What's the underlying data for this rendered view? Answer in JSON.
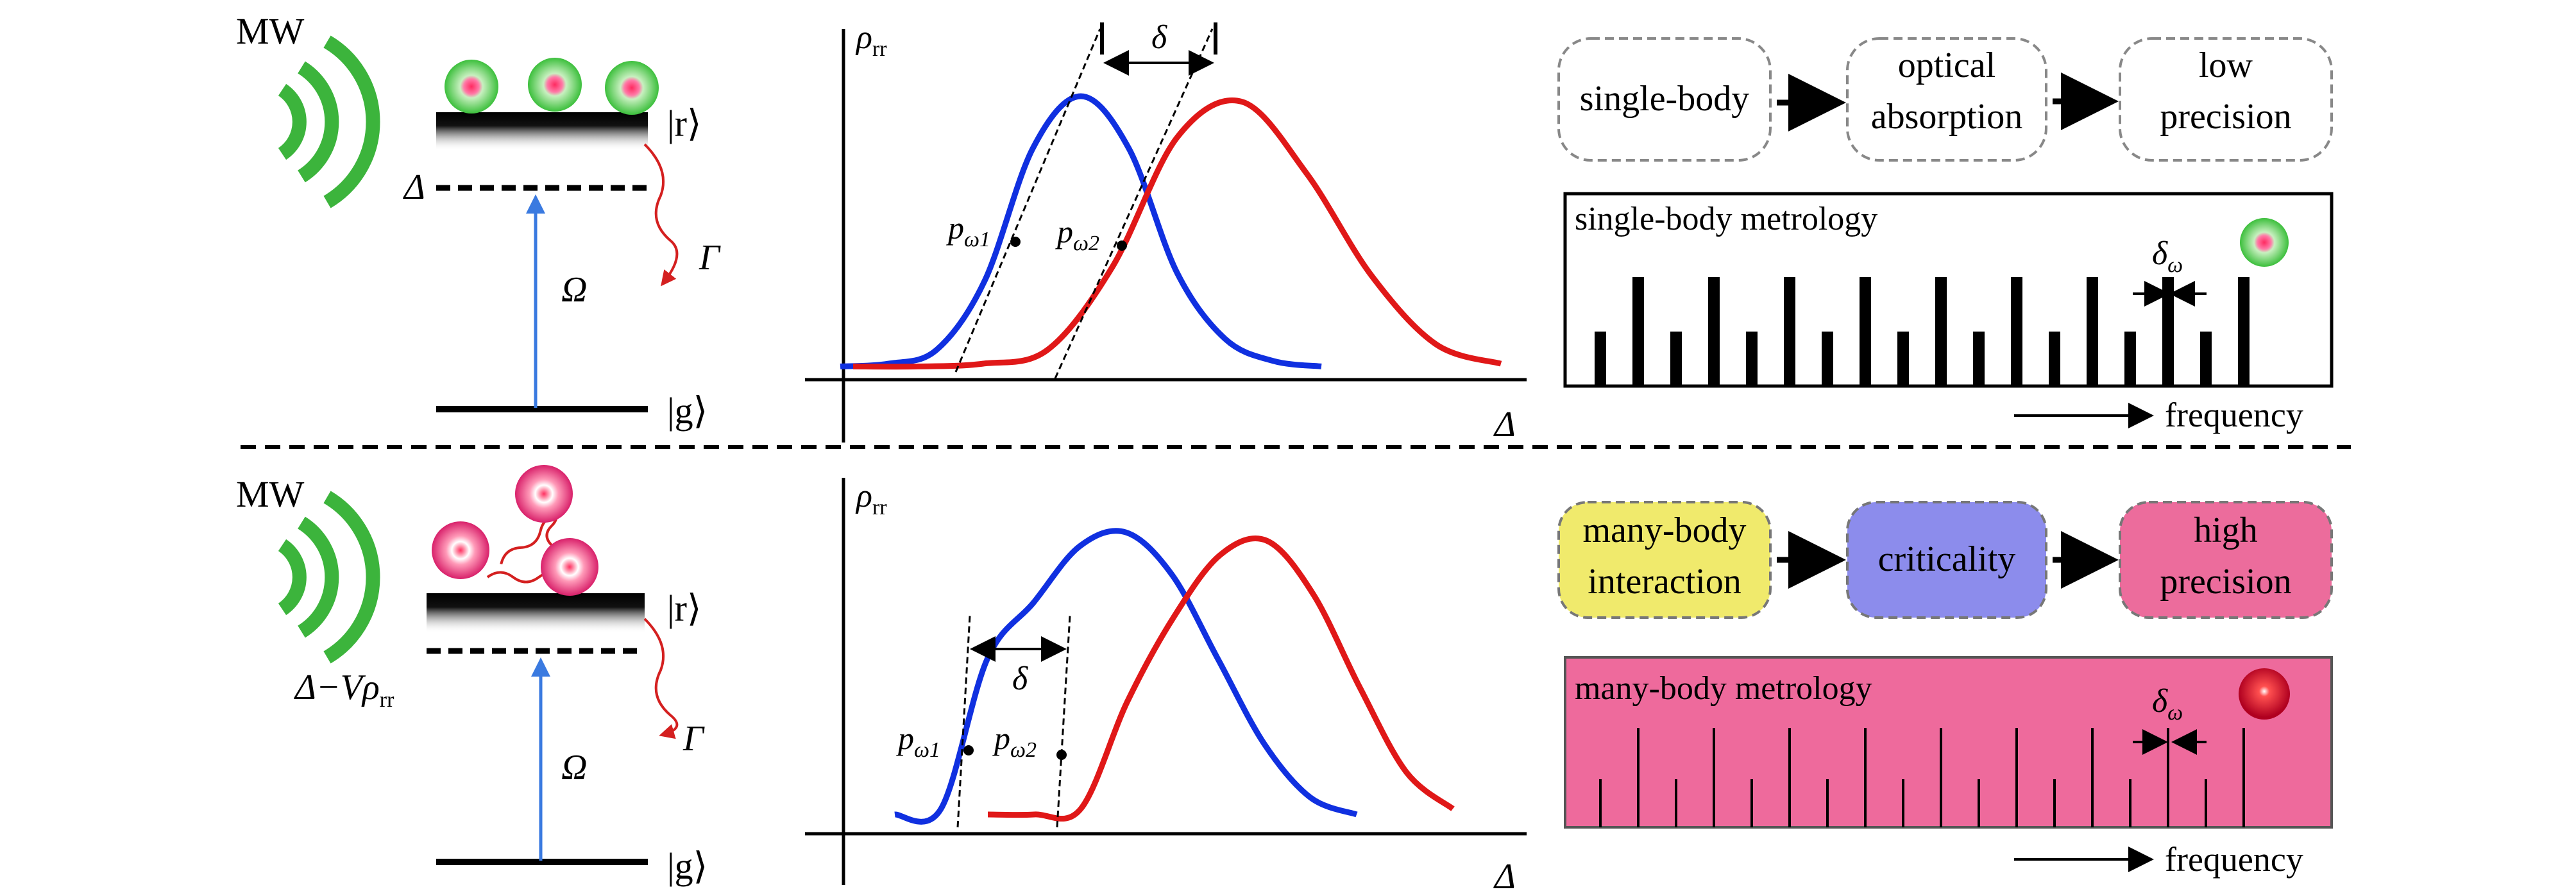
{
  "colors": {
    "blue_curve": "#1030e0",
    "red_curve": "#e01818",
    "mw_green": "#3cb43c",
    "pump_blue": "#3a7ae0",
    "decay_red": "#d42020",
    "box_yellow": "#f0ea6c",
    "box_purple": "#8c8cec",
    "box_pink": "#ec6c9c",
    "metrology_bg": "#ee6a9c"
  },
  "top": {
    "mw_label": "MW",
    "rydberg_level": "|r⟩",
    "ground_level": "|g⟩",
    "detuning": "Δ",
    "rabi": "Ω",
    "decay": "Γ",
    "plot": {
      "ylabel_main": "ρ",
      "ylabel_sub": "rr",
      "xlabel": "Δ",
      "delta": "δ",
      "p1_main": "p",
      "p1_sub": "ω1",
      "p2_main": "p",
      "p2_sub": "ω2"
    },
    "flow": [
      "single-body",
      "optical|absorption",
      "low|precision"
    ],
    "metrology_title": "single-body metrology",
    "delta_omega_main": "δ",
    "delta_omega_sub": "ω",
    "frequency": "frequency"
  },
  "bottom": {
    "mw_label": "MW",
    "rydberg_level": "|r⟩",
    "ground_level": "|g⟩",
    "detuning_a": "Δ",
    "detuning_b": "−Vρ",
    "detuning_sub": "rr",
    "rabi": "Ω",
    "decay": "Γ",
    "plot": {
      "ylabel_main": "ρ",
      "ylabel_sub": "rr",
      "xlabel": "Δ",
      "delta": "δ",
      "p1_main": "p",
      "p1_sub": "ω1",
      "p2_main": "p",
      "p2_sub": "ω2"
    },
    "flow": [
      "many-body|interaction",
      "criticality",
      "high|precision"
    ],
    "metrology_title": "many-body metrology",
    "delta_omega_main": "δ",
    "delta_omega_sub": "ω",
    "frequency": "frequency"
  },
  "chart_data": [
    {
      "type": "line",
      "title": "",
      "xlabel": "Δ",
      "ylabel": "ρrr",
      "note": "single-body: two Gaussian-like resonance lines shifted by δ",
      "series": [
        {
          "x": [
            0,
            1,
            2,
            3,
            4,
            5,
            6,
            7,
            8,
            9,
            10
          ],
          "values": [
            0.02,
            0.03,
            0.08,
            0.33,
            0.81,
            1.0,
            0.81,
            0.36,
            0.12,
            0.04,
            0.02
          ]
        },
        {
          "x": [
            0,
            1,
            2,
            3,
            4,
            5,
            6,
            7,
            8,
            9,
            10
          ],
          "values": [
            0.02,
            0.02,
            0.03,
            0.08,
            0.38,
            0.85,
            0.98,
            0.72,
            0.35,
            0.1,
            0.03
          ]
        }
      ]
    },
    {
      "type": "line",
      "title": "",
      "xlabel": "Δ",
      "ylabel": "ρrr",
      "note": "many-body: resonance lines with sharp jumps (critical points) separated by δ",
      "series": [
        {
          "x": [
            0,
            1,
            2,
            3,
            4,
            5,
            6,
            7,
            8,
            9,
            10
          ],
          "values": [
            0.0,
            0.02,
            0.55,
            0.75,
            0.95,
            1.0,
            0.85,
            0.55,
            0.25,
            0.06,
            0.0
          ]
        },
        {
          "x": [
            0,
            1,
            2,
            3,
            4,
            5,
            6,
            7,
            8,
            9,
            10
          ],
          "values": [
            0.0,
            0.0,
            0.02,
            0.4,
            0.7,
            0.92,
            0.97,
            0.78,
            0.45,
            0.15,
            0.02
          ]
        }
      ]
    }
  ]
}
